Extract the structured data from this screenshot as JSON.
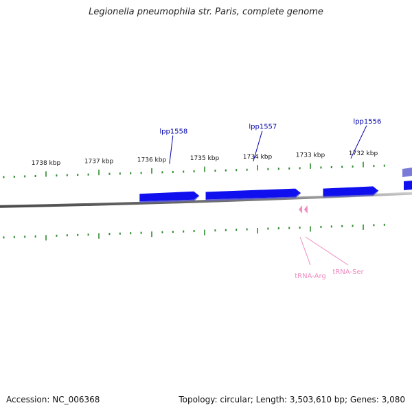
{
  "title": "Legionella pneumophila str. Paris, complete genome",
  "footer": {
    "accession": "Accession: NC_006368",
    "summary": "Topology: circular; Length: 3,503,610 bp; Genes: 3,080"
  },
  "colors": {
    "backbone": "#8a8a8a",
    "tick": "#2e8b2e",
    "gene": "#1010ee",
    "gene_label": "#0000aa",
    "trna": "#f08cc0"
  },
  "scale_labels": [
    {
      "kbp": 1738,
      "text": "1738 kbp"
    },
    {
      "kbp": 1737,
      "text": "1737 kbp"
    },
    {
      "kbp": 1736,
      "text": "1736 kbp"
    },
    {
      "kbp": 1735,
      "text": "1735 kbp"
    },
    {
      "kbp": 1734,
      "text": "1734 kbp"
    },
    {
      "kbp": 1733,
      "text": "1733 kbp"
    },
    {
      "kbp": 1732,
      "text": "1732 kbp"
    }
  ],
  "genes": [
    {
      "label": "lpp1558",
      "start_kbp": 1736.23,
      "end_kbp": 1735.1
    },
    {
      "label": "lpp1557",
      "start_kbp": 1734.98,
      "end_kbp": 1733.18
    },
    {
      "label": "lpp1556",
      "start_kbp": 1732.76,
      "end_kbp": 1731.71
    }
  ],
  "trnas": [
    {
      "label": "tRNA-Arg",
      "kbp": 1733.22
    },
    {
      "label": "tRNA-Ser",
      "kbp": 1733.12
    }
  ]
}
